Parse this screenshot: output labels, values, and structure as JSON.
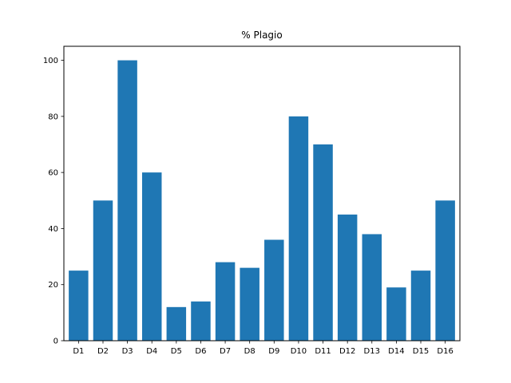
{
  "chart_data": {
    "type": "bar",
    "title": "% Plagio",
    "xlabel": "",
    "ylabel": "",
    "categories": [
      "D1",
      "D2",
      "D3",
      "D4",
      "D5",
      "D6",
      "D7",
      "D8",
      "D9",
      "D10",
      "D11",
      "D12",
      "D13",
      "D14",
      "D15",
      "D16"
    ],
    "values": [
      25,
      50,
      100,
      60,
      12,
      14,
      28,
      26,
      36,
      80,
      70,
      45,
      38,
      19,
      25,
      50
    ],
    "ylim": [
      0,
      105
    ],
    "yticks": [
      0,
      20,
      40,
      60,
      80,
      100
    ],
    "grid": false,
    "bar_color": "#1f77b4"
  }
}
